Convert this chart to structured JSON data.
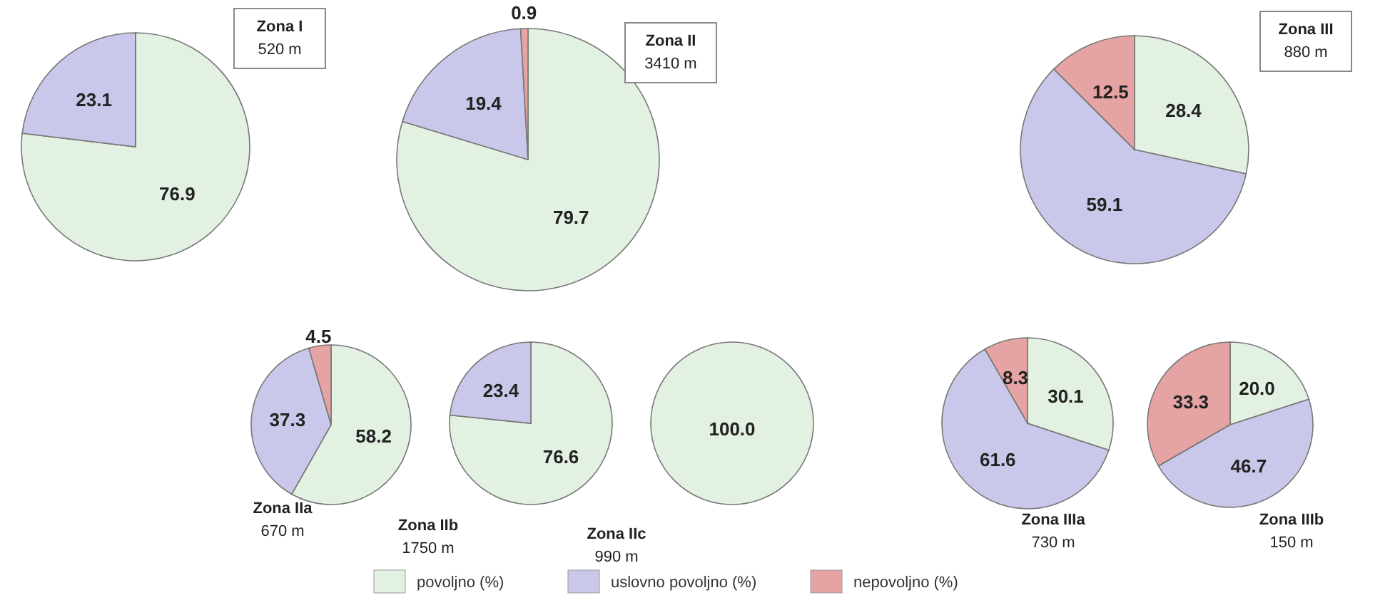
{
  "chart_data": [
    {
      "type": "pie",
      "title": "Zona I",
      "subtitle": "520 m",
      "categories": [
        "povoljno (%)",
        "uslovno povoljno (%)",
        "nepovoljno (%)"
      ],
      "values": [
        76.9,
        23.1,
        0
      ],
      "value_labels": [
        "76.9",
        "23.1",
        null
      ],
      "colors": [
        "#e3f1e3",
        "#c9c8ea",
        "#e6a3a3"
      ],
      "legend": "bottom"
    },
    {
      "type": "pie",
      "title": "Zona II",
      "subtitle": "3410 m",
      "categories": [
        null,
        null,
        null
      ],
      "values": [
        79.7,
        19.4,
        0.9
      ],
      "value_labels": [
        "79.7",
        "19.4",
        "0.9"
      ],
      "colors": [
        "#e3f1e3",
        "#c9c8ea",
        "#e6a3a3"
      ]
    },
    {
      "type": "pie",
      "title": "Zona III",
      "subtitle": "880 m",
      "categories": [
        null,
        null,
        null
      ],
      "values": [
        28.4,
        59.1,
        12.5
      ],
      "value_labels": [
        "28.4",
        "59.1",
        "12.5"
      ],
      "colors": [
        "#e3f1e3",
        "#c9c8ea",
        "#e6a3a3"
      ]
    },
    {
      "type": "pie",
      "title": "Zona IIa",
      "subtitle": "670 m",
      "categories": [
        null,
        null,
        null
      ],
      "values": [
        58.2,
        37.3,
        4.5
      ],
      "value_labels": [
        "58.2",
        "37.3",
        "4.5"
      ],
      "colors": [
        "#e3f1e3",
        "#c9c8ea",
        "#e6a3a3"
      ]
    },
    {
      "type": "pie",
      "title": "Zona IIb",
      "subtitle": "1750 m",
      "categories": [
        null,
        null
      ],
      "values": [
        76.6,
        23.4
      ],
      "value_labels": [
        "76.6",
        "23.4"
      ],
      "colors": [
        "#e3f1e3",
        "#c9c8ea"
      ]
    },
    {
      "type": "pie",
      "title": "Zona IIc",
      "subtitle": "990 m",
      "categories": [
        null
      ],
      "values": [
        100
      ],
      "value_labels": [
        "100.0"
      ],
      "colors": [
        "#e3f1e3"
      ]
    },
    {
      "type": "pie",
      "title": "Zona IIIa",
      "subtitle": "730 m",
      "categories": [
        null,
        null,
        null
      ],
      "values": [
        30.1,
        61.6,
        8.3
      ],
      "value_labels": [
        "30.1",
        "61.6",
        "8.3"
      ],
      "colors": [
        "#e3f1e3",
        "#c9c8ea",
        "#e6a3a3"
      ]
    },
    {
      "type": "pie",
      "title": "Zona IIIb",
      "subtitle": "150 m",
      "categories": [
        null,
        null,
        null
      ],
      "values": [
        20,
        46.7,
        33.3
      ],
      "value_labels": [
        "20.0",
        "46.7",
        "33.3"
      ],
      "colors": [
        "#e3f1e3",
        "#c9c8ea",
        "#e6a3a3"
      ]
    }
  ]
}
